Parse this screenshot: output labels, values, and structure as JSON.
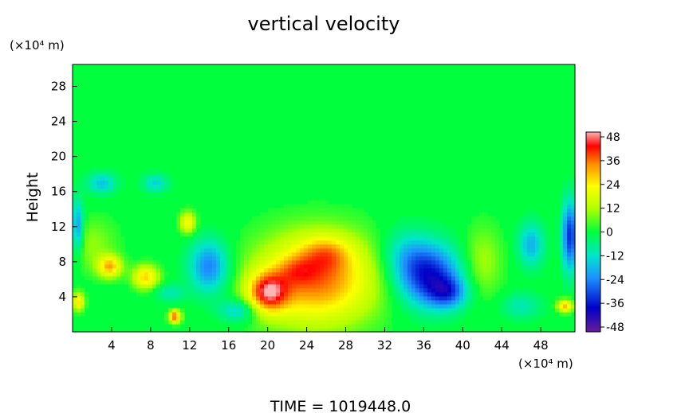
{
  "chart_data": {
    "type": "heatmap",
    "title": "vertical velocity",
    "ylabel": "Height",
    "y_unit": "(×10⁴ m)",
    "x_unit": "(×10⁴ m)",
    "xlim": [
      0,
      51.5
    ],
    "ylim": [
      0,
      30.5
    ],
    "x_ticks": [
      4,
      8,
      12,
      16,
      20,
      24,
      28,
      32,
      36,
      40,
      44,
      48
    ],
    "y_ticks": [
      4,
      8,
      12,
      16,
      20,
      24,
      28
    ],
    "colorbar": {
      "ticks": [
        48,
        36,
        24,
        12,
        0,
        -12,
        -24,
        -36,
        -48
      ],
      "labels": [
        "48",
        "36",
        "24",
        "12",
        "0",
        "-12",
        "-24",
        "-36",
        "-48"
      ],
      "range": [
        -48,
        48
      ]
    },
    "grid": false,
    "features": [
      {
        "x": 25,
        "y": 6,
        "sx": 6,
        "sy": 5,
        "value": 34
      },
      {
        "x": 20,
        "y": 4.5,
        "sx": 2,
        "sy": 2.2,
        "value": 34
      },
      {
        "x": 26,
        "y": 9,
        "sx": 2.5,
        "sy": 2,
        "value": 14
      },
      {
        "x": 23,
        "y": 7,
        "sx": 2,
        "sy": 1.6,
        "value": 10
      },
      {
        "x": 36.5,
        "y": 6.5,
        "sx": 3.2,
        "sy": 3.5,
        "value": -34
      },
      {
        "x": 38.5,
        "y": 4.5,
        "sx": 2,
        "sy": 1.8,
        "value": -20
      },
      {
        "x": 34,
        "y": 9,
        "sx": 2.5,
        "sy": 3,
        "value": -10
      },
      {
        "x": 3.8,
        "y": 7.5,
        "sx": 1.2,
        "sy": 1.2,
        "value": 28
      },
      {
        "x": 7.5,
        "y": 6.3,
        "sx": 1.3,
        "sy": 1.3,
        "value": 26
      },
      {
        "x": 10.5,
        "y": 1.8,
        "sx": 0.6,
        "sy": 0.7,
        "value": 36
      },
      {
        "x": 11.8,
        "y": 12.5,
        "sx": 0.8,
        "sy": 1.2,
        "value": 22
      },
      {
        "x": 0.6,
        "y": 3.5,
        "sx": 0.6,
        "sy": 1,
        "value": 24
      },
      {
        "x": 50.5,
        "y": 3,
        "sx": 0.8,
        "sy": 0.7,
        "value": 28
      },
      {
        "x": 14,
        "y": 7.5,
        "sx": 2,
        "sy": 3,
        "value": -24
      },
      {
        "x": 51,
        "y": 11,
        "sx": 0.8,
        "sy": 4,
        "value": -32
      },
      {
        "x": 47,
        "y": 10,
        "sx": 1.3,
        "sy": 2.5,
        "value": -18
      },
      {
        "x": 0.5,
        "y": 12,
        "sx": 0.6,
        "sy": 3,
        "value": -22
      },
      {
        "x": 3,
        "y": 17,
        "sx": 1.5,
        "sy": 1.2,
        "value": -16
      },
      {
        "x": 8.5,
        "y": 17,
        "sx": 1.3,
        "sy": 1,
        "value": -14
      },
      {
        "x": 17,
        "y": 2.5,
        "sx": 2,
        "sy": 1.3,
        "value": -16
      },
      {
        "x": 10,
        "y": 4.5,
        "sx": 1.5,
        "sy": 1,
        "value": -10
      },
      {
        "x": 46,
        "y": 3,
        "sx": 2,
        "sy": 1.5,
        "value": -10
      },
      {
        "x": 42,
        "y": 8,
        "sx": 2,
        "sy": 4,
        "value": 10
      },
      {
        "x": 2,
        "y": 10,
        "sx": 2.5,
        "sy": 3,
        "value": 8
      }
    ]
  },
  "footer": {
    "time_label": "TIME  =  1019448.0"
  }
}
